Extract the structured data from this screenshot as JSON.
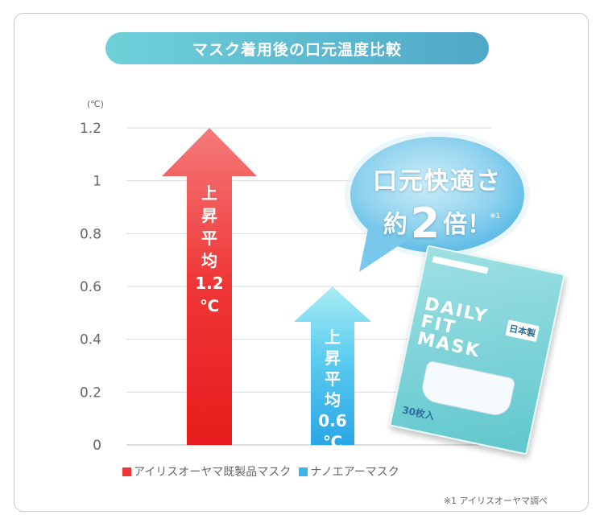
{
  "title": "マスク着用後の口元温度比較",
  "unit_label": "(℃)",
  "chart_data": {
    "type": "bar",
    "title": "マスク着用後の口元温度比較",
    "ylabel": "(℃)",
    "ylim": [
      0,
      1.2
    ],
    "yticks": [
      "1.2",
      "1",
      "0.8",
      "0.6",
      "0.4",
      "0.2",
      "0"
    ],
    "grid": true,
    "categories": [
      "アイリスオーヤマ既製品マスク",
      "ナノエアーマスク"
    ],
    "values": [
      1.2,
      0.6
    ],
    "bar_labels": [
      [
        "上",
        "昇",
        "平",
        "均",
        "1.2",
        "℃"
      ],
      [
        "上",
        "昇",
        "平",
        "均",
        "0.6",
        "℃"
      ]
    ],
    "legend": [
      "アイリスオーヤマ既製品マスク",
      "ナノエアーマスク"
    ],
    "legend_placement": "bottom"
  },
  "colors": {
    "series1": "#ef3535",
    "series2": "#3ab7ea",
    "accent": "#5bbfd3"
  },
  "callout": {
    "line1": "口元快適さ",
    "pre": "約",
    "big": "2",
    "post": "倍！",
    "note_mark": "※1"
  },
  "product": {
    "name": "DAILY FIT MASK",
    "line1": "DAILY",
    "line2": "FIT",
    "line3": "MASK",
    "badge": "日本製",
    "count": "30枚入"
  },
  "footnote": "※1 アイリスオーヤマ調べ"
}
